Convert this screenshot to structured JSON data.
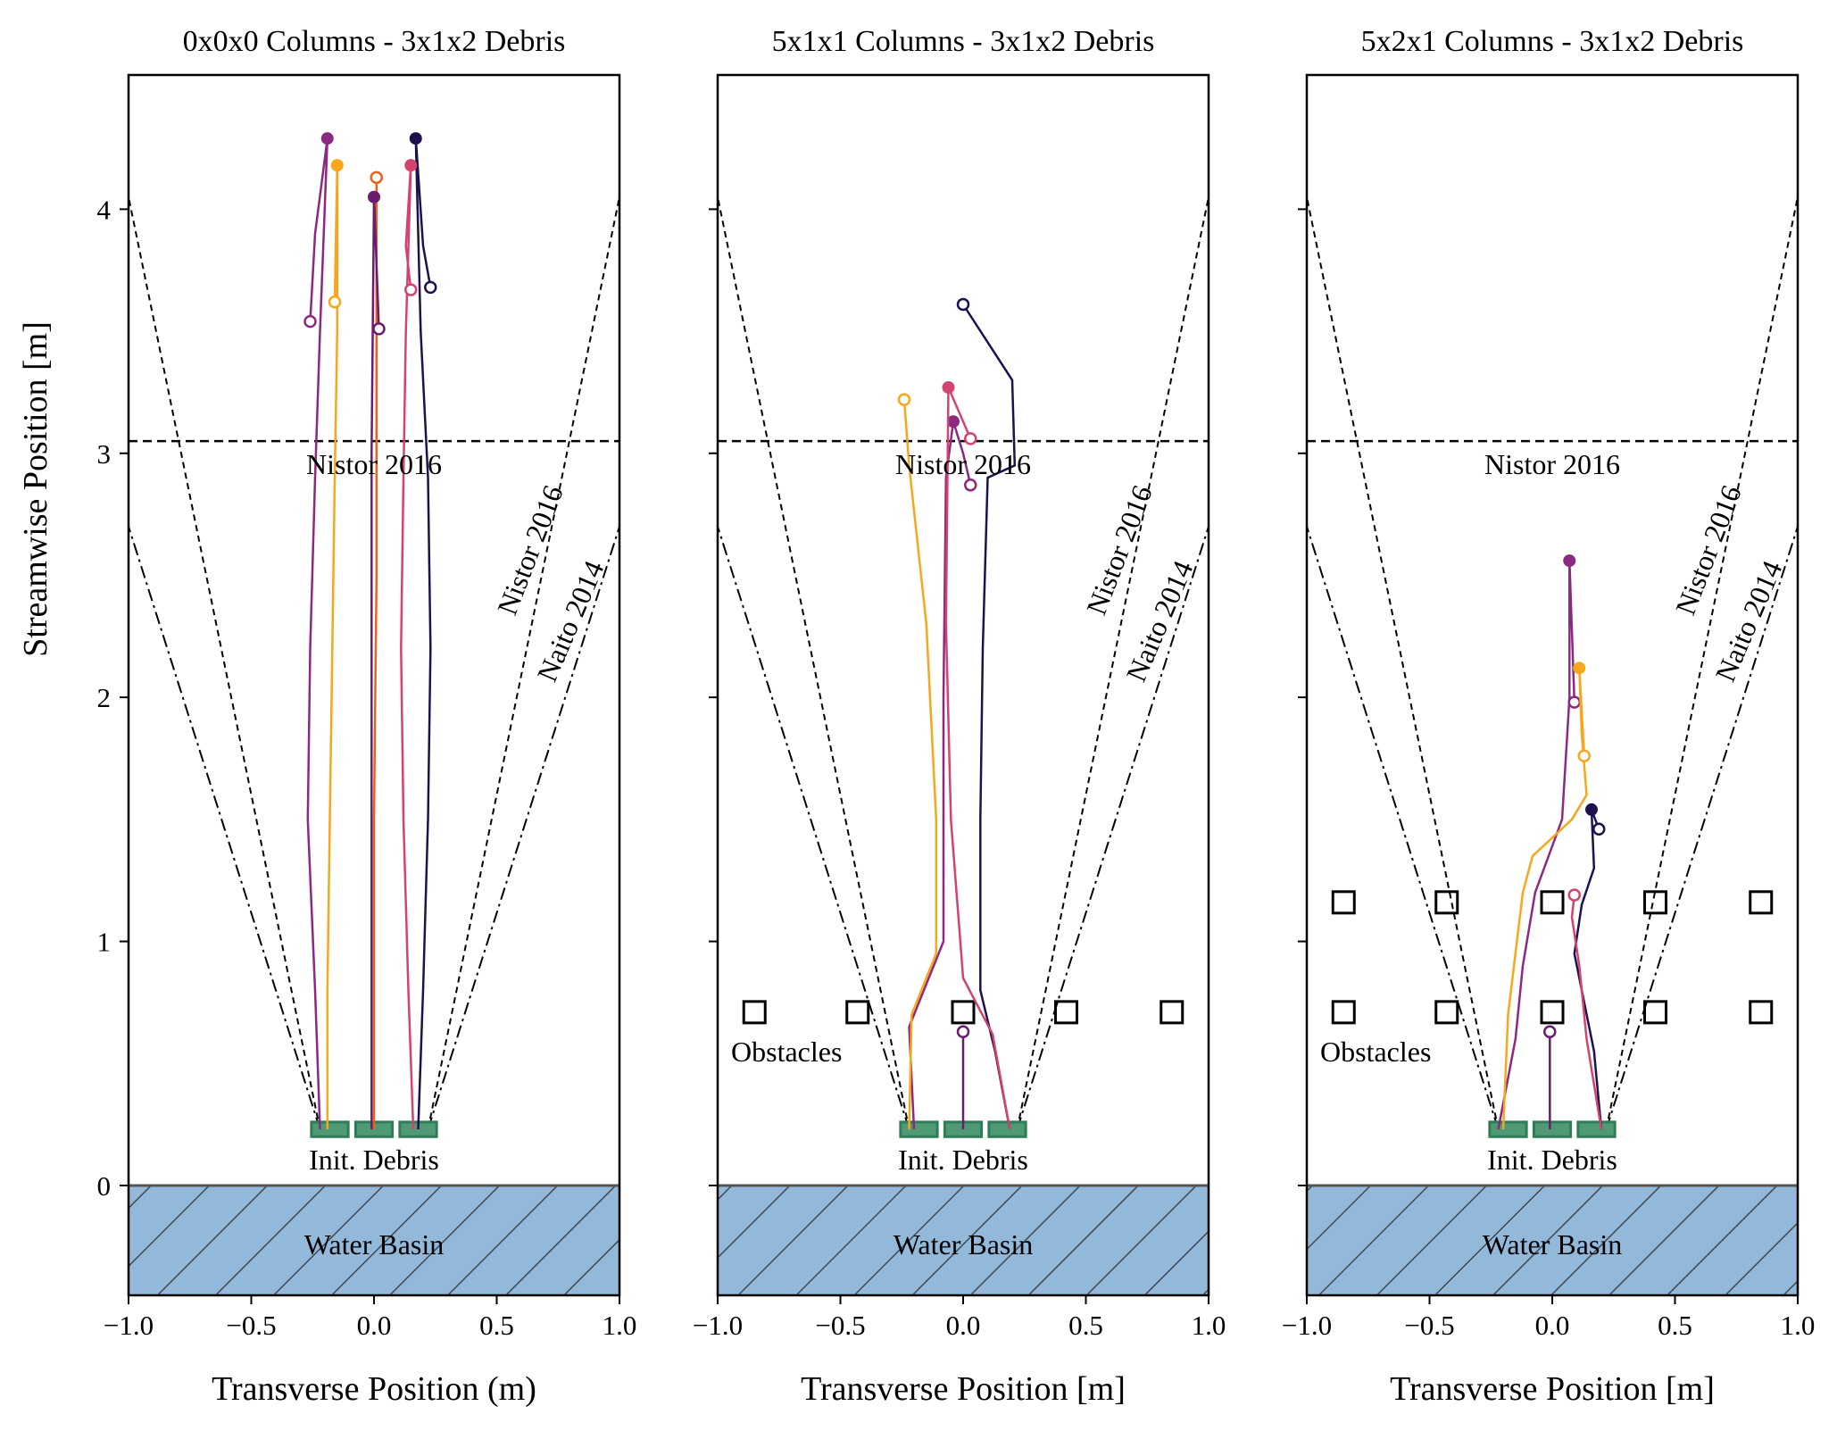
{
  "figure": {
    "ylabel": "Streamwise Position [m]",
    "colors": {
      "debris_fill": "#4f9a74",
      "debris_edge": "#2e7d57",
      "basin_fill": "#93b9da",
      "basin_hatch": "#404850",
      "t1": "#1f1150",
      "t2": "#8c2981",
      "t3": "#d3436e",
      "t4": "#e8641c",
      "t5": "#f8a61b",
      "t6": "#6b1c6e"
    }
  },
  "chart_data": [
    {
      "type": "line",
      "title": "0x0x0 Columns - 3x1x2 Debris",
      "xlabel": "Transverse Position (m)",
      "xlim": [
        -1.0,
        1.0
      ],
      "ylim": [
        -0.45,
        4.55
      ],
      "xticks": [
        "−1.0",
        "−0.5",
        "0.0",
        "0.5",
        "1.0"
      ],
      "yticks": [
        "0",
        "1",
        "2",
        "3",
        "4"
      ],
      "annotations": {
        "nistor_h": "Nistor 2016",
        "nistor_slant": "Nistor 2016",
        "naito_slant": "Naito 2014",
        "debris": "Init. Debris",
        "basin": "Water Basin"
      },
      "reference_lines": {
        "nistor_horizontal_y": 3.05,
        "nistor_spread_top_x": 1.0,
        "naito_spread_top_x": 1.0
      },
      "obstacles": [],
      "series": [
        {
          "color_key": "t1",
          "x": [
            0.18,
            0.2,
            0.22,
            0.23,
            0.22,
            0.19,
            0.17,
            0.2,
            0.23
          ],
          "y": [
            0.23,
            0.8,
            1.5,
            2.2,
            2.9,
            3.5,
            4.29,
            3.85,
            3.68
          ]
        },
        {
          "color_key": "t2",
          "x": [
            -0.22,
            -0.24,
            -0.27,
            -0.26,
            -0.24,
            -0.22,
            -0.19,
            -0.24,
            -0.26
          ],
          "y": [
            0.23,
            0.8,
            1.5,
            2.2,
            2.9,
            3.5,
            4.29,
            3.9,
            3.54
          ]
        },
        {
          "color_key": "t3",
          "x": [
            0.16,
            0.14,
            0.12,
            0.11,
            0.12,
            0.13,
            0.15,
            0.13,
            0.15
          ],
          "y": [
            0.23,
            0.8,
            1.5,
            2.2,
            2.9,
            3.5,
            4.18,
            3.85,
            3.67
          ]
        },
        {
          "color_key": "t4",
          "x": [
            0.0,
            0.0,
            0.01,
            0.01,
            0.01,
            0.01
          ],
          "y": [
            0.23,
            1.5,
            2.5,
            3.3,
            3.67,
            4.13
          ]
        },
        {
          "color_key": "t5",
          "x": [
            -0.19,
            -0.19,
            -0.18,
            -0.17,
            -0.16,
            -0.15,
            -0.15,
            -0.16
          ],
          "y": [
            0.23,
            0.8,
            1.5,
            2.2,
            2.9,
            3.5,
            4.18,
            3.62
          ]
        },
        {
          "color_key": "t6",
          "x": [
            -0.01,
            -0.01,
            -0.01,
            0.0,
            0.02
          ],
          "y": [
            0.23,
            1.5,
            3.0,
            4.05,
            3.51
          ]
        }
      ]
    },
    {
      "type": "line",
      "title": "5x1x1 Columns - 3x1x2 Debris",
      "xlabel": "Transverse Position [m]",
      "xlim": [
        -1.0,
        1.0
      ],
      "ylim": [
        -0.45,
        4.55
      ],
      "xticks": [
        "−1.0",
        "−0.5",
        "0.0",
        "0.5",
        "1.0"
      ],
      "yticks": [
        "0",
        "1",
        "2",
        "3",
        "4"
      ],
      "annotations": {
        "nistor_h": "Nistor 2016",
        "nistor_slant": "Nistor 2016",
        "naito_slant": "Naito 2014",
        "obstacles": "Obstacles",
        "debris": "Init. Debris",
        "basin": "Water Basin"
      },
      "reference_lines": {
        "nistor_horizontal_y": 3.05,
        "nistor_spread_top_x": 1.0,
        "naito_spread_top_x": 1.0
      },
      "obstacles": [
        [
          -0.85,
          0.71
        ],
        [
          -0.43,
          0.71
        ],
        [
          0.0,
          0.71
        ],
        [
          0.42,
          0.71
        ],
        [
          0.85,
          0.71
        ]
      ],
      "series": [
        {
          "color_key": "t1",
          "x": [
            0.19,
            0.13,
            0.07,
            0.07,
            0.08,
            0.1,
            0.21,
            0.2,
            0.0
          ],
          "y": [
            0.23,
            0.55,
            0.8,
            1.5,
            2.2,
            2.9,
            2.95,
            3.3,
            3.61
          ]
        },
        {
          "color_key": "t2",
          "x": [
            -0.2,
            -0.22,
            -0.08,
            -0.08,
            -0.07,
            -0.04,
            0.0,
            0.03
          ],
          "y": [
            0.23,
            0.65,
            1.0,
            2.0,
            2.9,
            3.13,
            3.0,
            2.87
          ]
        },
        {
          "color_key": "t3",
          "x": [
            0.19,
            0.12,
            0.0,
            -0.05,
            -0.07,
            -0.06,
            0.03
          ],
          "y": [
            0.23,
            0.62,
            0.85,
            1.5,
            2.3,
            3.27,
            3.06
          ]
        },
        {
          "color_key": "t5",
          "x": [
            -0.22,
            -0.21,
            -0.11,
            -0.11,
            -0.15,
            -0.22,
            -0.24
          ],
          "y": [
            0.23,
            0.7,
            0.95,
            1.5,
            2.3,
            2.95,
            3.22
          ]
        },
        {
          "color_key": "t6",
          "x": [
            0.0,
            0.0,
            0.0
          ],
          "y": [
            0.23,
            0.45,
            0.63
          ]
        }
      ]
    },
    {
      "type": "line",
      "title": "5x2x1 Columns - 3x1x2 Debris",
      "xlabel": "Transverse Position [m]",
      "xlim": [
        -1.0,
        1.0
      ],
      "ylim": [
        -0.45,
        4.55
      ],
      "xticks": [
        "−1.0",
        "−0.5",
        "0.0",
        "0.5",
        "1.0"
      ],
      "yticks": [
        "0",
        "1",
        "2",
        "3",
        "4"
      ],
      "annotations": {
        "nistor_h": "Nistor 2016",
        "nistor_slant": "Nistor 2016",
        "naito_slant": "Naito 2014",
        "obstacles": "Obstacles",
        "debris": "Init. Debris",
        "basin": "Water Basin"
      },
      "reference_lines": {
        "nistor_horizontal_y": 3.05,
        "nistor_spread_top_x": 1.0,
        "naito_spread_top_x": 1.0
      },
      "obstacles": [
        [
          -0.85,
          0.71
        ],
        [
          -0.43,
          0.71
        ],
        [
          0.0,
          0.71
        ],
        [
          0.42,
          0.71
        ],
        [
          0.85,
          0.71
        ],
        [
          -0.85,
          1.16
        ],
        [
          -0.43,
          1.16
        ],
        [
          0.0,
          1.16
        ],
        [
          0.42,
          1.16
        ],
        [
          0.85,
          1.16
        ]
      ],
      "series": [
        {
          "color_key": "t1",
          "x": [
            0.2,
            0.17,
            0.09,
            0.12,
            0.17,
            0.16,
            0.19
          ],
          "y": [
            0.23,
            0.55,
            0.95,
            1.15,
            1.3,
            1.54,
            1.46
          ]
        },
        {
          "color_key": "t2",
          "x": [
            -0.22,
            -0.15,
            -0.12,
            -0.07,
            0.04,
            0.07,
            0.07,
            0.09
          ],
          "y": [
            0.23,
            0.6,
            0.9,
            1.2,
            1.5,
            2.0,
            2.56,
            1.98
          ]
        },
        {
          "color_key": "t3",
          "x": [
            0.2,
            0.14,
            0.11,
            0.08,
            0.09
          ],
          "y": [
            0.23,
            0.6,
            0.9,
            1.1,
            1.19
          ]
        },
        {
          "color_key": "t5",
          "x": [
            -0.2,
            -0.18,
            -0.12,
            -0.08,
            0.08,
            0.14,
            0.12,
            0.11,
            0.13
          ],
          "y": [
            0.23,
            0.7,
            1.2,
            1.35,
            1.5,
            1.6,
            1.85,
            2.12,
            1.76
          ]
        },
        {
          "color_key": "t6",
          "x": [
            -0.01,
            -0.01,
            -0.01
          ],
          "y": [
            0.23,
            0.45,
            0.63
          ]
        }
      ]
    }
  ]
}
